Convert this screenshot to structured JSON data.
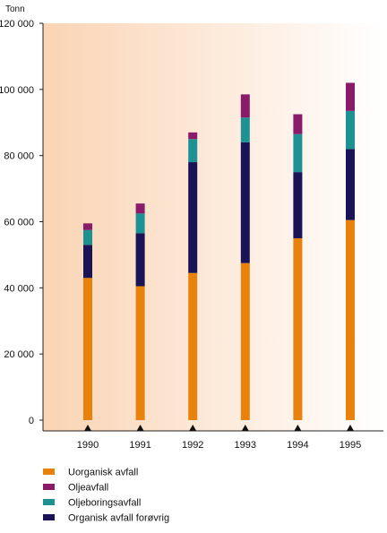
{
  "chart_data": {
    "type": "bar",
    "stacked": true,
    "title": "",
    "xlabel": "",
    "ylabel": "Tonn",
    "ylim": [
      0,
      120000
    ],
    "yticks": [
      0,
      20000,
      40000,
      60000,
      80000,
      100000,
      120000
    ],
    "ytick_labels": [
      "0",
      "20 000",
      "40 000",
      "60 000",
      "80 000",
      "100 000",
      "120 000"
    ],
    "categories": [
      "1990",
      "1991",
      "1992",
      "1993",
      "1994",
      "1995"
    ],
    "series": [
      {
        "name": "Uorganisk avfall",
        "color": "#E8820C",
        "values": [
          43000,
          40500,
          44500,
          47500,
          55000,
          60500
        ]
      },
      {
        "name": "Organisk avfall forøvrig",
        "color": "#1A1356",
        "values": [
          10000,
          16000,
          33500,
          36500,
          20000,
          21500
        ]
      },
      {
        "name": "Oljeboringsavfall",
        "color": "#1E9192",
        "values": [
          4500,
          6000,
          7000,
          7500,
          11500,
          11500
        ]
      },
      {
        "name": "Oljeavfall",
        "color": "#8A1A6A",
        "values": [
          2000,
          3000,
          2000,
          7000,
          6000,
          8500
        ]
      }
    ],
    "legend": {
      "placement": "bottom-left",
      "order": [
        "Uorganisk avfall",
        "Oljeavfall",
        "Oljeboringsavfall",
        "Organisk avfall forøvrig"
      ]
    },
    "grid": false,
    "background_gradient": [
      "#FAD4B4",
      "#FFFFFF"
    ]
  }
}
